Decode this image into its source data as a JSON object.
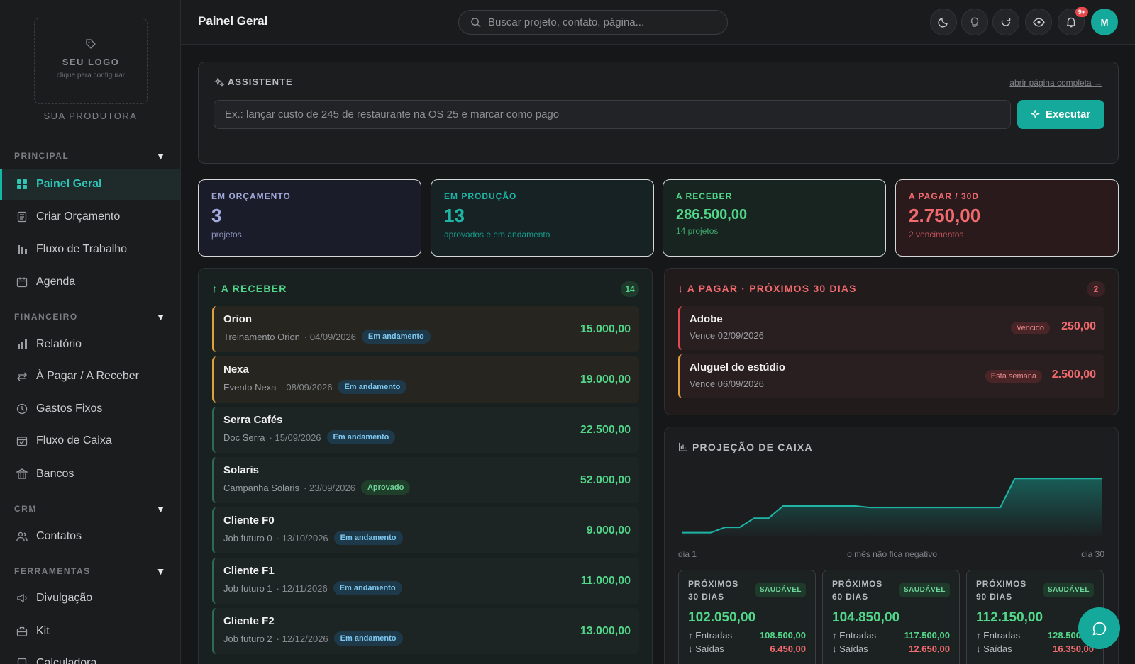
{
  "sidebar": {
    "logo_title": "SEU LOGO",
    "logo_hint": "clique para configurar",
    "producer": "SUA PRODUTORA",
    "sections": {
      "principal": "PRINCIPAL",
      "financeiro": "FINANCEIRO",
      "crm": "CRM",
      "ferramentas": "FERRAMENTAS"
    },
    "items": {
      "painel": "Painel Geral",
      "criar": "Criar Orçamento",
      "fluxo_trabalho": "Fluxo de Trabalho",
      "agenda": "Agenda",
      "relatorio": "Relatório",
      "pagar_receber": "À Pagar / A Receber",
      "gastos": "Gastos Fixos",
      "fluxo_caixa": "Fluxo de Caixa",
      "bancos": "Bancos",
      "contatos": "Contatos",
      "divulgacao": "Divulgação",
      "kit": "Kit",
      "calculadora": "Calculadora"
    }
  },
  "header": {
    "title": "Painel Geral",
    "search_placeholder": "Buscar projeto, contato, página...",
    "notif_badge": "9+",
    "avatar": "M",
    "icons": [
      "moon-icon",
      "lightbulb-icon",
      "refresh-icon",
      "eye-icon",
      "bell-icon"
    ]
  },
  "assistant": {
    "title": "ASSISTENTE",
    "link": "abrir página completa →",
    "placeholder": "Ex.: lançar custo de 245 de restaurante na OS 25 e marcar como pago",
    "button": "Executar"
  },
  "stats": [
    {
      "label": "EM ORÇAMENTO",
      "value": "3",
      "sub": "projetos"
    },
    {
      "label": "EM PRODUÇÃO",
      "value": "13",
      "sub": "aprovados e em andamento"
    },
    {
      "label": "A RECEBER",
      "value": "286.500,00",
      "sub": "14 projetos"
    },
    {
      "label": "A PAGAR / 30D",
      "value": "2.750,00",
      "sub": "2 vencimentos"
    }
  ],
  "receivables": {
    "title": "↑ A RECEBER",
    "count": "14",
    "rows": [
      {
        "name": "Orion",
        "desc": "Treinamento Orion",
        "date": "· 04/09/2026",
        "status": "Em andamento",
        "amount": "15.000,00"
      },
      {
        "name": "Nexa",
        "desc": "Evento Nexa",
        "date": "· 08/09/2026",
        "status": "Em andamento",
        "amount": "19.000,00"
      },
      {
        "name": "Serra Cafés",
        "desc": "Doc Serra",
        "date": "· 15/09/2026",
        "status": "Em andamento",
        "amount": "22.500,00"
      },
      {
        "name": "Solaris",
        "desc": "Campanha Solaris",
        "date": "· 23/09/2026",
        "status": "Aprovado",
        "amount": "52.000,00"
      },
      {
        "name": "Cliente F0",
        "desc": "Job futuro 0",
        "date": "· 13/10/2026",
        "status": "Em andamento",
        "amount": "9.000,00"
      },
      {
        "name": "Cliente F1",
        "desc": "Job futuro 1",
        "date": "· 12/11/2026",
        "status": "Em andamento",
        "amount": "11.000,00"
      },
      {
        "name": "Cliente F2",
        "desc": "Job futuro 2",
        "date": "· 12/12/2026",
        "status": "Em andamento",
        "amount": "13.000,00"
      }
    ]
  },
  "payables": {
    "title": "↓ A PAGAR · PRÓXIMOS 30 DIAS",
    "count": "2",
    "rows": [
      {
        "name": "Adobe",
        "due": "Vence 02/09/2026",
        "tag": "Vencido",
        "amount": "250,00"
      },
      {
        "name": "Aluguel do estúdio",
        "due": "Vence 06/09/2026",
        "tag": "Esta semana",
        "amount": "2.500,00"
      }
    ]
  },
  "projection": {
    "title": "PROJEÇÃO DE CAIXA",
    "label_start": "dia 1",
    "label_mid": "o mês não fica negativo",
    "label_end": "dia 30",
    "cards": [
      {
        "period": "PRÓXIMOS 30 DIAS",
        "status": "SAUDÁVEL",
        "value": "102.050,00",
        "in_label": "↑ Entradas",
        "in": "108.500,00",
        "out_label": "↓ Saídas",
        "out": "6.450,00"
      },
      {
        "period": "PRÓXIMOS 60 DIAS",
        "status": "SAUDÁVEL",
        "value": "104.850,00",
        "in_label": "↑ Entradas",
        "in": "117.500,00",
        "out_label": "↓ Saídas",
        "out": "12.650,00"
      },
      {
        "period": "PRÓXIMOS 90 DIAS",
        "status": "SAUDÁVEL",
        "value": "112.150,00",
        "in_label": "↑ Entradas",
        "in": "128.500,00",
        "out_label": "↓ Saídas",
        "out": "16.350,00"
      }
    ]
  },
  "chart_data": {
    "type": "area",
    "title": "PROJEÇÃO DE CAIXA",
    "x": [
      1,
      2,
      3,
      4,
      5,
      6,
      7,
      8,
      9,
      10,
      11,
      12,
      13,
      14,
      15,
      16,
      17,
      18,
      19,
      20,
      21,
      22,
      23,
      24,
      25,
      26,
      27,
      28,
      29,
      30
    ],
    "values": [
      5,
      5,
      5,
      12,
      12,
      24,
      24,
      40,
      40,
      40,
      40,
      40,
      40,
      38,
      38,
      38,
      38,
      38,
      38,
      38,
      38,
      38,
      38,
      76,
      76,
      76,
      76,
      76,
      76,
      76
    ],
    "xlabel": "",
    "ylabel": "",
    "colors": {
      "line": "#1fb5a6",
      "fill": "#14a99a"
    }
  },
  "colors": {
    "accent": "#14a99a",
    "positive": "#52d68a",
    "negative": "#f06a6e",
    "warning": "#e0a040"
  }
}
